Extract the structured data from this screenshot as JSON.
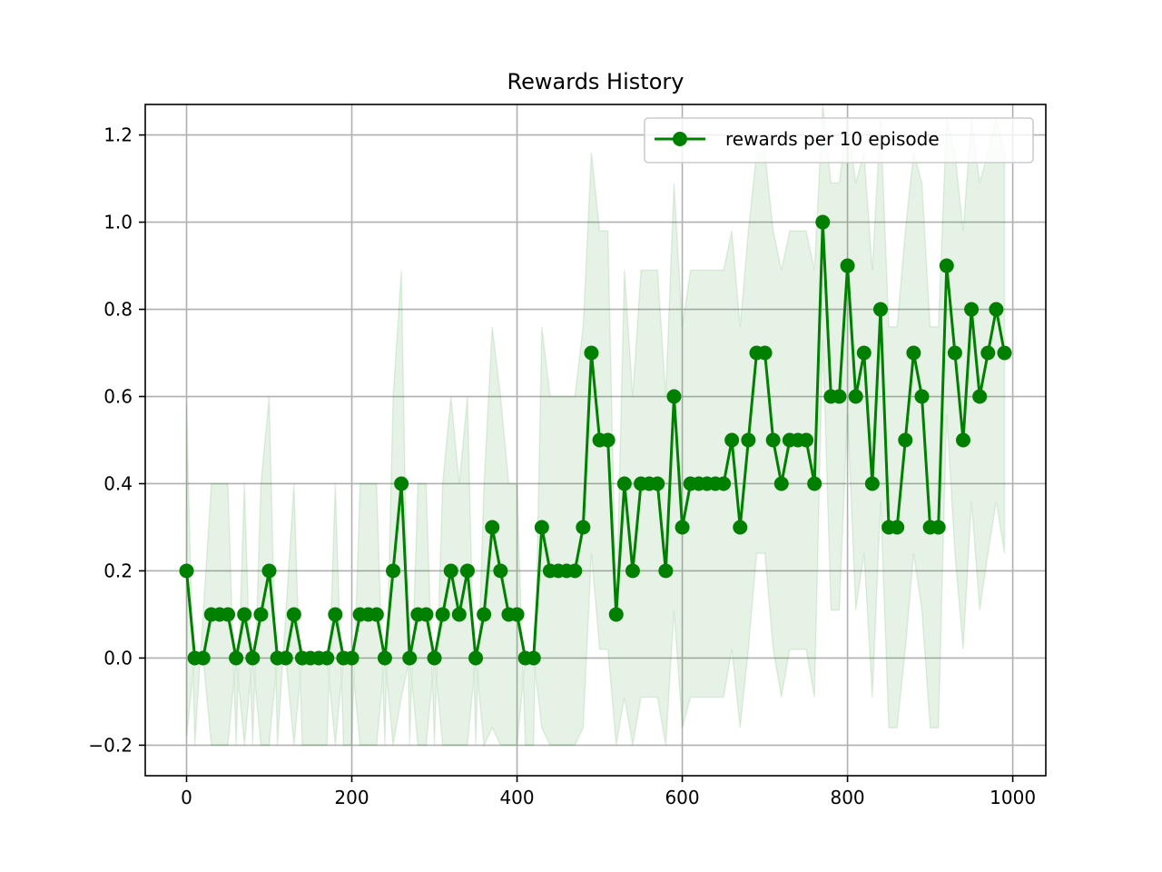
{
  "chart_data": {
    "type": "line",
    "title": "Rewards History",
    "xlabel": "",
    "ylabel": "",
    "xlim": [
      -50,
      1040
    ],
    "ylim": [
      -0.27,
      1.27
    ],
    "x_ticks": [
      0,
      200,
      400,
      600,
      800,
      1000
    ],
    "x_tick_labels": [
      "0",
      "200",
      "400",
      "600",
      "800",
      "1000"
    ],
    "y_ticks": [
      -0.2,
      0.0,
      0.2,
      0.4,
      0.6,
      0.8,
      1.0,
      1.2
    ],
    "y_tick_labels": [
      "−0.2",
      "0.0",
      "0.2",
      "0.4",
      "0.6",
      "0.8",
      "1.0",
      "1.2"
    ],
    "grid": true,
    "legend_position": "top-right",
    "series": [
      {
        "name": "rewards per 10 episode",
        "color": "#008000",
        "marker": "circle",
        "x": [
          0,
          10,
          20,
          30,
          40,
          50,
          60,
          70,
          80,
          90,
          100,
          110,
          120,
          130,
          140,
          150,
          160,
          170,
          180,
          190,
          200,
          210,
          220,
          230,
          240,
          250,
          260,
          270,
          280,
          290,
          300,
          310,
          320,
          330,
          340,
          350,
          360,
          370,
          380,
          390,
          400,
          410,
          420,
          430,
          440,
          450,
          460,
          470,
          480,
          490,
          500,
          510,
          520,
          530,
          540,
          550,
          560,
          570,
          580,
          590,
          600,
          610,
          620,
          630,
          640,
          650,
          660,
          670,
          680,
          690,
          700,
          710,
          720,
          730,
          740,
          750,
          760,
          770,
          780,
          790,
          800,
          810,
          820,
          830,
          840,
          850,
          860,
          870,
          880,
          890,
          900,
          910,
          920,
          930,
          940,
          950,
          960,
          970,
          980,
          990
        ],
        "values": [
          0.2,
          0,
          0,
          0.1,
          0.1,
          0.1,
          0,
          0.1,
          0,
          0.1,
          0.2,
          0,
          0,
          0.1,
          0,
          0,
          0,
          0,
          0.1,
          0,
          0,
          0.1,
          0.1,
          0.1,
          0,
          0.2,
          0.4,
          0,
          0.1,
          0.1,
          0,
          0.1,
          0.2,
          0.1,
          0.2,
          0,
          0.1,
          0.3,
          0.2,
          0.1,
          0.1,
          0,
          0,
          0.3,
          0.2,
          0.2,
          0.2,
          0.2,
          0.3,
          0.7,
          0.5,
          0.5,
          0.1,
          0.4,
          0.2,
          0.4,
          0.4,
          0.4,
          0.2,
          0.6,
          0.3,
          0.4,
          0.4,
          0.4,
          0.4,
          0.4,
          0.5,
          0.3,
          0.5,
          0.7,
          0.7,
          0.5,
          0.4,
          0.5,
          0.5,
          0.5,
          0.4,
          1.0,
          0.6,
          0.6,
          0.9,
          0.6,
          0.7,
          0.4,
          0.8,
          0.3,
          0.3,
          0.5,
          0.7,
          0.6,
          0.3,
          0.3,
          0.9,
          0.7,
          0.5,
          0.8,
          0.6,
          0.7,
          0.8,
          0.7
        ],
        "band_upper": [
          0.58,
          -0.2,
          0.1,
          0.4,
          0.4,
          0.4,
          -0.2,
          0.4,
          -0.2,
          0.4,
          0.6,
          -0.2,
          0.1,
          0.4,
          -0.2,
          -0.2,
          -0.2,
          -0.2,
          0.4,
          -0.2,
          -0.2,
          0.4,
          0.4,
          0.4,
          -0.2,
          0.6,
          0.89,
          -0.2,
          0.4,
          0.4,
          -0.2,
          0.4,
          0.6,
          0.4,
          0.6,
          -0.2,
          0.4,
          0.76,
          0.6,
          0.4,
          0.4,
          -0.2,
          -0.2,
          0.76,
          0.6,
          0.6,
          0.6,
          0.6,
          0.76,
          1.16,
          0.98,
          0.98,
          0.1,
          0.89,
          0.6,
          0.89,
          0.89,
          0.89,
          0.6,
          1.09,
          0.76,
          0.89,
          0.89,
          0.89,
          0.89,
          0.89,
          0.98,
          0.76,
          0.98,
          1.16,
          1.16,
          0.98,
          0.89,
          0.98,
          0.98,
          0.98,
          0.89,
          1.27,
          1.09,
          1.09,
          1.24,
          1.09,
          1.16,
          0.89,
          1.24,
          0.76,
          0.76,
          0.98,
          1.16,
          1.09,
          0.76,
          0.76,
          1.24,
          1.16,
          0.98,
          1.24,
          1.09,
          1.16,
          1.24,
          1.16
        ],
        "band_lower": [
          -0.18,
          0,
          0,
          -0.2,
          -0.2,
          -0.2,
          0,
          -0.2,
          0,
          -0.2,
          -0.2,
          0,
          0,
          -0.2,
          0,
          0,
          0,
          0,
          -0.2,
          0,
          0,
          -0.2,
          -0.2,
          -0.2,
          0,
          -0.2,
          -0.09,
          0,
          -0.2,
          -0.2,
          0,
          -0.2,
          -0.2,
          -0.2,
          -0.2,
          0,
          -0.2,
          -0.16,
          -0.2,
          -0.2,
          -0.2,
          0,
          0,
          -0.16,
          -0.2,
          -0.2,
          -0.2,
          -0.2,
          -0.16,
          0.24,
          0.02,
          0.02,
          -0.2,
          -0.09,
          -0.2,
          -0.09,
          -0.09,
          -0.09,
          -0.2,
          0.11,
          -0.16,
          -0.09,
          -0.09,
          -0.09,
          -0.09,
          -0.09,
          0.02,
          -0.16,
          0.02,
          0.24,
          0.24,
          0.02,
          -0.09,
          0.02,
          0.02,
          0.02,
          -0.09,
          0.73,
          0.11,
          0.11,
          0.56,
          0.11,
          0.24,
          -0.09,
          0.36,
          -0.16,
          -0.16,
          0.02,
          0.24,
          0.11,
          -0.16,
          -0.16,
          0.56,
          0.24,
          0.02,
          0.36,
          0.11,
          0.24,
          0.36,
          0.24
        ]
      }
    ]
  }
}
